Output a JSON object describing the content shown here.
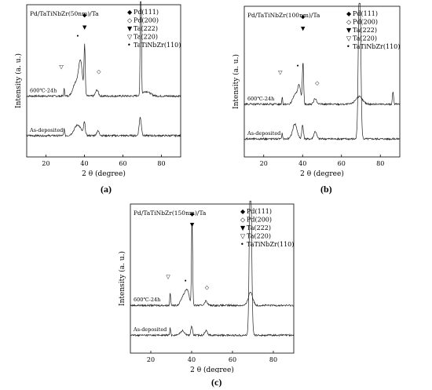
{
  "figure": {
    "captions": [
      "(a)",
      "(b)",
      "(c)"
    ]
  },
  "chart_data": [
    {
      "type": "line",
      "panel": "a",
      "title": "Pd/TaTiNbZr(50nm)/Ta",
      "xlabel": "2 θ (degree)",
      "ylabel": "Intensity (a. u.)",
      "xlim": [
        10,
        90
      ],
      "xticks": [
        "20",
        "40",
        "60",
        "80"
      ],
      "xtick_values": [
        20,
        40,
        60,
        80
      ],
      "legend_placement": "top-right",
      "legend": [
        {
          "symbol": "◆",
          "label": "Pd(111)"
        },
        {
          "symbol": "◇",
          "label": "Pd(200)"
        },
        {
          "symbol": "▼",
          "label": "Ta(222)"
        },
        {
          "symbol": "▽",
          "label": "Ta(220)"
        },
        {
          "symbol": "•",
          "label": "TaTiNbZr(110)"
        }
      ],
      "series": [
        {
          "name": "600℃-24h",
          "baseline": 0.4,
          "peaks": [
            [
              29.5,
              0.05,
              0.3
            ],
            [
              35.5,
              0.09,
              2.0
            ],
            [
              38.0,
              0.22,
              1.4
            ],
            [
              40.1,
              0.32,
              0.45
            ],
            [
              46.5,
              0.04,
              1.0
            ],
            [
              69.3,
              1.2,
              0.35
            ],
            [
              72,
              0.03,
              3
            ]
          ]
        },
        {
          "name": "As-deposited",
          "baseline": 0.14,
          "peaks": [
            [
              29.5,
              0.05,
              0.3
            ],
            [
              36.5,
              0.07,
              2.5
            ],
            [
              40.0,
              0.08,
              0.6
            ],
            [
              47.0,
              0.03,
              1.0
            ],
            [
              69.0,
              0.12,
              0.8
            ]
          ]
        }
      ],
      "markers": [
        {
          "symbol": "▽",
          "x": 28,
          "y": 0.58
        },
        {
          "symbol": "•",
          "x": 36.5,
          "y": 0.78
        },
        {
          "symbol": "▼",
          "x": 40.1,
          "y": 0.84
        },
        {
          "symbol": "◆",
          "x": 40.1,
          "y": 0.92
        },
        {
          "symbol": "◇",
          "x": 47.5,
          "y": 0.55
        }
      ]
    },
    {
      "type": "line",
      "panel": "b",
      "title": "Pd/TaTiNbZr(100nm)/Ta",
      "xlabel": "2 θ (degree)",
      "ylabel": "Intensity (a. u.)",
      "xlim": [
        10,
        90
      ],
      "xticks": [
        "20",
        "40",
        "60",
        "80"
      ],
      "xtick_values": [
        20,
        40,
        60,
        80
      ],
      "legend_placement": "top-right",
      "legend": [
        {
          "symbol": "◆",
          "label": "Pd(111)"
        },
        {
          "symbol": "◇",
          "label": "Pd(200)"
        },
        {
          "symbol": "▼",
          "label": "Ta(222)"
        },
        {
          "symbol": "▽",
          "label": "Ta(220)"
        },
        {
          "symbol": "•",
          "label": "TaTiNbZr(110)"
        }
      ],
      "series": [
        {
          "name": "600℃-24h",
          "baseline": 0.35,
          "peaks": [
            [
              29.5,
              0.05,
              0.3
            ],
            [
              36.0,
              0.06,
              1.5
            ],
            [
              38.2,
              0.12,
              1.2
            ],
            [
              40.2,
              0.28,
              0.45
            ],
            [
              46.5,
              0.04,
              1.0
            ],
            [
              69.0,
              0.05,
              2.5
            ],
            [
              86.5,
              0.08,
              0.4
            ]
          ]
        },
        {
          "name": "As-deposited",
          "baseline": 0.12,
          "peaks": [
            [
              29.5,
              0.04,
              0.3
            ],
            [
              36.0,
              0.1,
              1.6
            ],
            [
              40.0,
              0.09,
              0.6
            ],
            [
              46.5,
              0.05,
              1.0
            ],
            [
              69.3,
              1.2,
              0.8
            ]
          ]
        }
      ],
      "markers": [
        {
          "symbol": "▽",
          "x": 28.5,
          "y": 0.55
        },
        {
          "symbol": "•",
          "x": 37.5,
          "y": 0.59
        },
        {
          "symbol": "▼",
          "x": 40.2,
          "y": 0.84
        },
        {
          "symbol": "◆",
          "x": 40.2,
          "y": 0.92
        },
        {
          "symbol": "◇",
          "x": 47.5,
          "y": 0.48
        }
      ]
    },
    {
      "type": "line",
      "panel": "c",
      "title": "Pd/TaTiNbZr(150nm)/Ta",
      "xlabel": "2 θ (degree)",
      "ylabel": "Intensity (a. u.)",
      "xlim": [
        10,
        90
      ],
      "xticks": [
        "20",
        "40",
        "60",
        "80"
      ],
      "xtick_values": [
        20,
        40,
        60,
        80
      ],
      "legend_placement": "top-right",
      "legend": [
        {
          "symbol": "◆",
          "label": "Pd(111)"
        },
        {
          "symbol": "◇",
          "label": "Pd(200)"
        },
        {
          "symbol": "▼",
          "label": "Ta(222)"
        },
        {
          "symbol": "▽",
          "label": "Ta(220)"
        },
        {
          "symbol": "•",
          "label": "TaTiNbZr(110)"
        }
      ],
      "series": [
        {
          "name": "600℃-24h",
          "baseline": 0.32,
          "peaks": [
            [
              29.5,
              0.09,
              0.3
            ],
            [
              36.2,
              0.07,
              1.8
            ],
            [
              38.0,
              0.08,
              1.2
            ],
            [
              40.2,
              0.58,
              0.4
            ],
            [
              47.0,
              0.03,
              1.0
            ],
            [
              68.8,
              0.09,
              1.5
            ]
          ]
        },
        {
          "name": "As-deposited",
          "baseline": 0.12,
          "peaks": [
            [
              29.5,
              0.05,
              0.3
            ],
            [
              35.5,
              0.03,
              1.5
            ],
            [
              40.0,
              0.06,
              0.6
            ],
            [
              47.0,
              0.03,
              1.0
            ],
            [
              68.8,
              1.2,
              0.75
            ]
          ]
        }
      ],
      "markers": [
        {
          "symbol": "▽",
          "x": 28.5,
          "y": 0.5
        },
        {
          "symbol": "•",
          "x": 37.0,
          "y": 0.47
        },
        {
          "symbol": "▼",
          "x": 40.2,
          "y": 0.85
        },
        {
          "symbol": "◆",
          "x": 40.2,
          "y": 0.92
        },
        {
          "symbol": "◇",
          "x": 47.5,
          "y": 0.43
        }
      ]
    }
  ]
}
